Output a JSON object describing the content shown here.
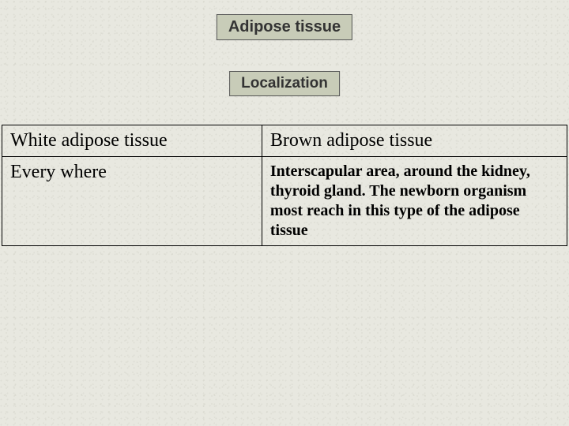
{
  "titles": {
    "main": "Adipose tissue",
    "sub": "Localization"
  },
  "table": {
    "headers": {
      "left": "White adipose tissue",
      "right": "Brown adipose tissue"
    },
    "rows": {
      "left": "Every where",
      "right": "Interscapular area, around the kidney, thyroid gland. The newborn organism most reach in this type of the adipose tissue"
    }
  },
  "styling": {
    "background_color": "#e8e8e0",
    "title_box_bg": "#c8ccb8",
    "title_box_border": "#555555",
    "table_border": "#000000",
    "text_color": "#000000",
    "title_text_color": "#333333",
    "title_fontsize": 20,
    "subtitle_fontsize": 19,
    "header_fontsize": 24,
    "body_fontsize": 20,
    "title_font": "Arial",
    "table_font": "Times New Roman",
    "header_font_weight": "normal",
    "body_font_weight": "bold"
  }
}
